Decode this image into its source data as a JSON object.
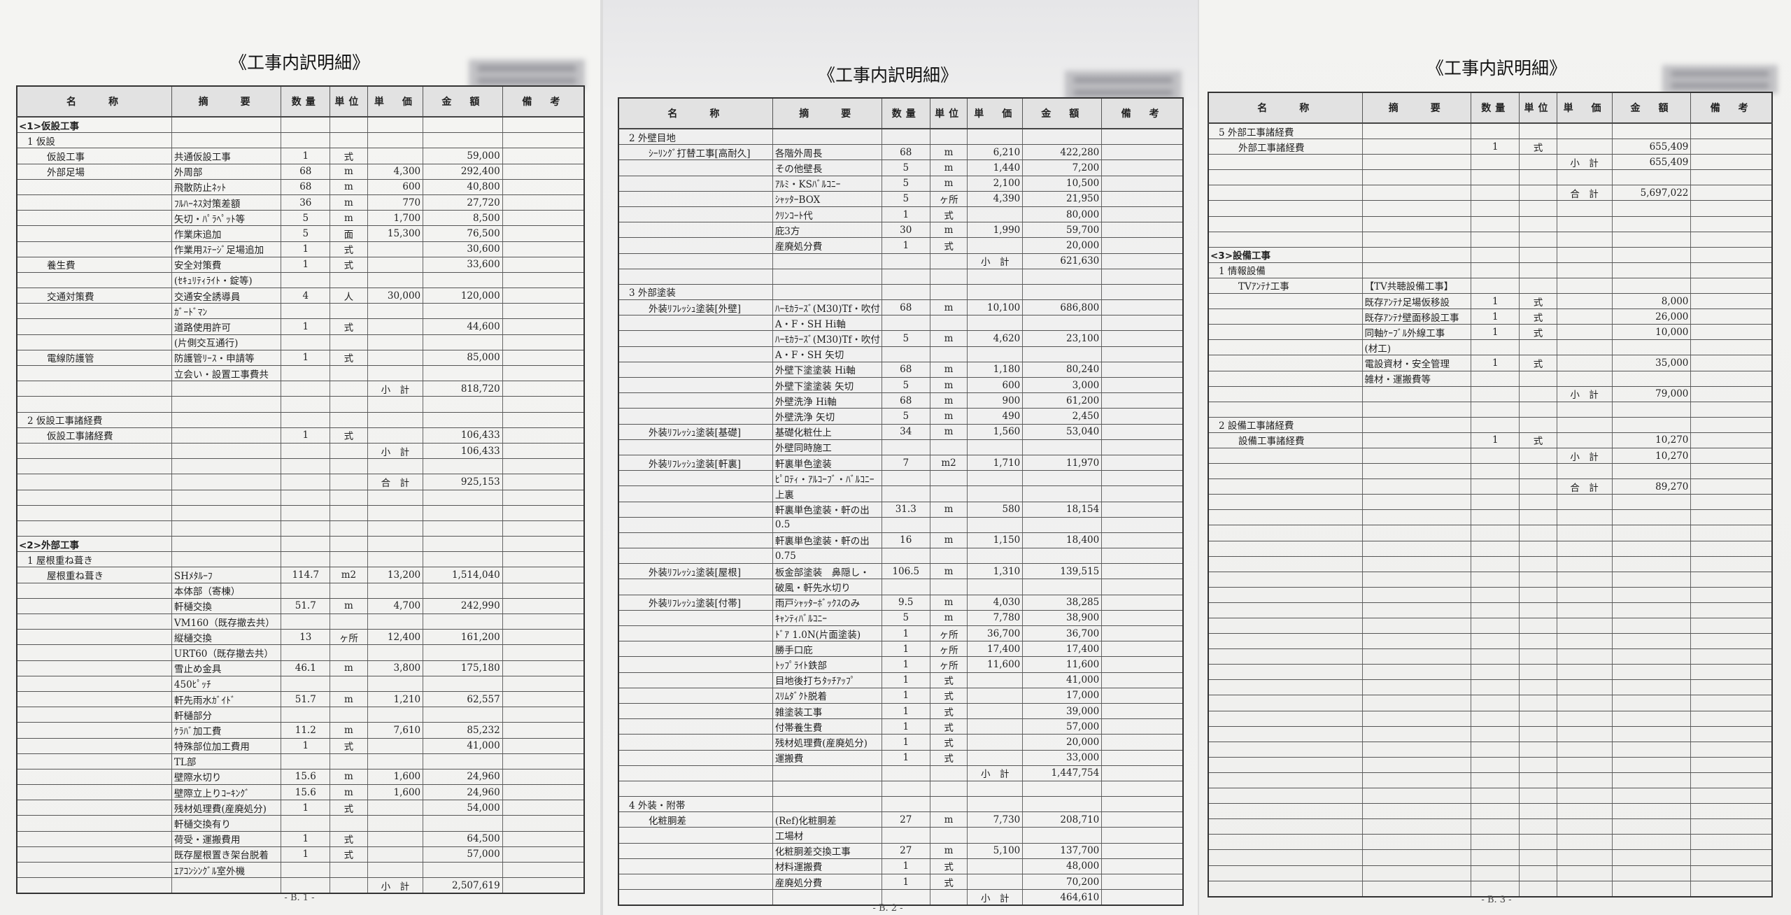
{
  "headers": [
    "名　　称",
    "摘　　要",
    "数量",
    "単位",
    "単　価",
    "金　額",
    "備　考"
  ],
  "pages": [
    {
      "title": "《工事内訳明細》",
      "footer": "- B. 1 -",
      "rows": [
        [
          "section",
          "<1>仮設工事"
        ],
        [
          "group",
          "1 仮設"
        ],
        [
          "item",
          "仮設工事",
          "共通仮設工事",
          "1",
          "式",
          "",
          "59,000"
        ],
        [
          "item",
          "外部足場",
          "外周部",
          "68",
          "m",
          "4,300",
          "292,400"
        ],
        [
          "item",
          "",
          "飛散防止ﾈｯﾄ",
          "68",
          "m",
          "600",
          "40,800"
        ],
        [
          "item",
          "",
          "ﾌﾙﾊｰﾈｽ対策差額",
          "36",
          "m",
          "770",
          "27,720"
        ],
        [
          "item",
          "",
          "矢切・ﾊﾟﾗﾍﾟｯﾄ等",
          "5",
          "m",
          "1,700",
          "8,500"
        ],
        [
          "item",
          "",
          "作業床追加",
          "5",
          "面",
          "15,300",
          "76,500"
        ],
        [
          "item",
          "",
          "作業用ｽﾃｰｼﾞ足場追加",
          "1",
          "式",
          "",
          "30,600"
        ],
        [
          "item",
          "養生費",
          "安全対策費",
          "1",
          "式",
          "",
          "33,600"
        ],
        [
          "item",
          "",
          "(ｾｷｭﾘﾃｨﾗｲﾄ・錠等)"
        ],
        [
          "item",
          "交通対策費",
          "交通安全誘導員",
          "4",
          "人",
          "30,000",
          "120,000"
        ],
        [
          "item",
          "",
          "ｶﾞｰﾄﾞﾏﾝ"
        ],
        [
          "item",
          "",
          "道路使用許可",
          "1",
          "式",
          "",
          "44,600"
        ],
        [
          "item",
          "",
          "(片側交互通行)"
        ],
        [
          "item",
          "電線防護管",
          "防護管ﾘｰｽ・申請等",
          "1",
          "式",
          "",
          "85,000"
        ],
        [
          "item",
          "",
          "立会い・設置工事費共"
        ],
        [
          "item",
          "",
          "",
          "",
          "",
          "小　計",
          "818,720"
        ],
        [],
        [
          "group",
          "2 仮設工事諸経費"
        ],
        [
          "item",
          "仮設工事諸経費",
          "",
          "1",
          "式",
          "",
          "106,433"
        ],
        [
          "item",
          "",
          "",
          "",
          "",
          "小　計",
          "106,433"
        ],
        [],
        [
          "item",
          "",
          "",
          "",
          "",
          "合　計",
          "925,153"
        ],
        [],
        [],
        [],
        [
          "section",
          "<2>外部工事"
        ],
        [
          "group",
          "1 屋根重ね葺き"
        ],
        [
          "item",
          "屋根重ね葺き",
          "SHﾒﾀﾙｰﾌ",
          "114.7",
          "m2",
          "13,200",
          "1,514,040"
        ],
        [
          "item",
          "",
          "本体部（寄棟）"
        ],
        [
          "item",
          "",
          "軒樋交換",
          "51.7",
          "m",
          "4,700",
          "242,990"
        ],
        [
          "item",
          "",
          "VM160（既存撤去共）"
        ],
        [
          "item",
          "",
          "縦樋交換",
          "13",
          "ヶ所",
          "12,400",
          "161,200"
        ],
        [
          "item",
          "",
          "URT60（既存撤去共）"
        ],
        [
          "item",
          "",
          "雪止め金具",
          "46.1",
          "m",
          "3,800",
          "175,180"
        ],
        [
          "item",
          "",
          "450ﾋﾟｯﾁ"
        ],
        [
          "item",
          "",
          "軒先雨水ｶﾞｲﾄﾞ",
          "51.7",
          "m",
          "1,210",
          "62,557"
        ],
        [
          "item",
          "",
          "軒樋部分"
        ],
        [
          "item",
          "",
          "ｹﾗﾊﾞ加工費",
          "11.2",
          "m",
          "7,610",
          "85,232"
        ],
        [
          "item",
          "",
          "特殊部位加工費用",
          "1",
          "式",
          "",
          "41,000"
        ],
        [
          "item",
          "",
          "TL部"
        ],
        [
          "item",
          "",
          "壁際水切り",
          "15.6",
          "m",
          "1,600",
          "24,960"
        ],
        [
          "item",
          "",
          "壁際立上りｺｰｷﾝｸﾞ",
          "15.6",
          "m",
          "1,600",
          "24,960"
        ],
        [
          "item",
          "",
          "残材処理費(産廃処分)",
          "1",
          "式",
          "",
          "54,000"
        ],
        [
          "item",
          "",
          "軒樋交換有り"
        ],
        [
          "item",
          "",
          "荷受・運搬費用",
          "1",
          "式",
          "",
          "64,500"
        ],
        [
          "item",
          "",
          "既存屋根置き架台脱着",
          "1",
          "式",
          "",
          "57,000"
        ],
        [
          "item",
          "",
          "ｴｱｺﾝｼﾝｸﾞﾙ室外機"
        ],
        [
          "item",
          "",
          "",
          "",
          "",
          "小　計",
          "2,507,619"
        ]
      ]
    },
    {
      "title": "《工事内訳明細》",
      "footer": "- B. 2 -",
      "rows": [
        [
          "group",
          "2 外壁目地"
        ],
        [
          "item",
          "ｼｰﾘﾝｸﾞ打替工事[高耐久]",
          "各階外周長",
          "68",
          "m",
          "6,210",
          "422,280"
        ],
        [
          "item",
          "",
          "その他壁長",
          "5",
          "m",
          "1,440",
          "7,200"
        ],
        [
          "item",
          "",
          "ｱﾙﾐ・KSﾊﾞﾙｺﾆｰ",
          "5",
          "m",
          "2,100",
          "10,500"
        ],
        [
          "item",
          "",
          "ｼｬｯﾀｰBOX",
          "5",
          "ヶ所",
          "4,390",
          "21,950"
        ],
        [
          "item",
          "",
          "ｸﾘﾝｺｰﾄ代",
          "1",
          "式",
          "",
          "80,000"
        ],
        [
          "item",
          "",
          "庇3方",
          "30",
          "m",
          "1,990",
          "59,700"
        ],
        [
          "item",
          "",
          "産廃処分費",
          "1",
          "式",
          "",
          "20,000"
        ],
        [
          "item",
          "",
          "",
          "",
          "",
          "小　計",
          "621,630"
        ],
        [],
        [
          "group",
          "3 外部塗装"
        ],
        [
          "item",
          "外装ﾘﾌﾚｯｼｭ塗装[外壁]",
          "ﾊｰﾓｶﾗｰｽﾞ(M30)Tf・吹付",
          "68",
          "m",
          "10,100",
          "686,800"
        ],
        [
          "item",
          "",
          "A・F・SH Hi軸"
        ],
        [
          "item",
          "",
          "ﾊｰﾓｶﾗｰｽﾞ(M30)Tf・吹付",
          "5",
          "m",
          "4,620",
          "23,100"
        ],
        [
          "item",
          "",
          "A・F・SH 矢切"
        ],
        [
          "item",
          "",
          "外壁下塗塗装 Hi軸",
          "68",
          "m",
          "1,180",
          "80,240"
        ],
        [
          "item",
          "",
          "外壁下塗塗装 矢切",
          "5",
          "m",
          "600",
          "3,000"
        ],
        [
          "item",
          "",
          "外壁洗浄 Hi軸",
          "68",
          "m",
          "900",
          "61,200"
        ],
        [
          "item",
          "",
          "外壁洗浄 矢切",
          "5",
          "m",
          "490",
          "2,450"
        ],
        [
          "item",
          "外装ﾘﾌﾚｯｼｭ塗装[基礎]",
          "基礎化粧仕上",
          "34",
          "m",
          "1,560",
          "53,040"
        ],
        [
          "item",
          "",
          "外壁同時施工"
        ],
        [
          "item",
          "外装ﾘﾌﾚｯｼｭ塗装[軒裏]",
          "軒裏単色塗装",
          "7",
          "m2",
          "1,710",
          "11,970"
        ],
        [
          "item",
          "",
          "ﾋﾟﾛﾃｨ・ｱﾙｺｰﾌﾞ・ﾊﾞﾙｺﾆｰ"
        ],
        [
          "item",
          "",
          "上裏"
        ],
        [
          "item",
          "",
          "軒裏単色塗装・軒の出",
          "31.3",
          "m",
          "580",
          "18,154"
        ],
        [
          "item",
          "",
          "0.5"
        ],
        [
          "item",
          "",
          "軒裏単色塗装・軒の出",
          "16",
          "m",
          "1,150",
          "18,400"
        ],
        [
          "item",
          "",
          "0.75"
        ],
        [
          "item",
          "外装ﾘﾌﾚｯｼｭ塗装[屋根]",
          "板金部塗装　鼻隠し・",
          "106.5",
          "m",
          "1,310",
          "139,515"
        ],
        [
          "item",
          "",
          "破風・軒先水切り"
        ],
        [
          "item",
          "外装ﾘﾌﾚｯｼｭ塗装[付帯]",
          "雨戸ｼｬｯﾀｰﾎﾞｯｸｽのみ",
          "9.5",
          "m",
          "4,030",
          "38,285"
        ],
        [
          "item",
          "",
          "ｷｬﾝﾃｨﾊﾞﾙｺﾆｰ",
          "5",
          "m",
          "7,780",
          "38,900"
        ],
        [
          "item",
          "",
          "ﾄﾞｱ 1.0N(片面塗装)",
          "1",
          "ヶ所",
          "36,700",
          "36,700"
        ],
        [
          "item",
          "",
          "勝手口庇",
          "1",
          "ヶ所",
          "17,400",
          "17,400"
        ],
        [
          "item",
          "",
          "ﾄｯﾌﾟﾗｲﾄ鉄部",
          "1",
          "ヶ所",
          "11,600",
          "11,600"
        ],
        [
          "item",
          "",
          "目地後打ちﾀｯﾁｱｯﾌﾟ",
          "1",
          "式",
          "",
          "41,000"
        ],
        [
          "item",
          "",
          "ｽﾘﾑﾀﾞｸﾄ脱着",
          "1",
          "式",
          "",
          "17,000"
        ],
        [
          "item",
          "",
          "雑塗装工事",
          "1",
          "式",
          "",
          "39,000"
        ],
        [
          "item",
          "",
          "付帯養生費",
          "1",
          "式",
          "",
          "57,000"
        ],
        [
          "item",
          "",
          "残材処理費(産廃処分)",
          "1",
          "式",
          "",
          "20,000"
        ],
        [
          "item",
          "",
          "運搬費",
          "1",
          "式",
          "",
          "33,000"
        ],
        [
          "item",
          "",
          "",
          "",
          "",
          "小　計",
          "1,447,754"
        ],
        [],
        [
          "group",
          "4 外装・附帯"
        ],
        [
          "item",
          "化粧胴差",
          "(Ref)化粧胴差",
          "27",
          "m",
          "7,730",
          "208,710"
        ],
        [
          "item",
          "",
          "工場材"
        ],
        [
          "item",
          "",
          "化粧胴差交換工事",
          "27",
          "m",
          "5,100",
          "137,700"
        ],
        [
          "item",
          "",
          "材料運搬費",
          "1",
          "式",
          "",
          "48,000"
        ],
        [
          "item",
          "",
          "産廃処分費",
          "1",
          "式",
          "",
          "70,200"
        ],
        [
          "item",
          "",
          "",
          "",
          "",
          "小　計",
          "464,610"
        ]
      ]
    },
    {
      "title": "《工事内訳明細》",
      "footer": "- B. 3 -",
      "rows": [
        [
          "group",
          "5 外部工事諸経費"
        ],
        [
          "item",
          "外部工事諸経費",
          "",
          "1",
          "式",
          "",
          "655,409"
        ],
        [
          "item",
          "",
          "",
          "",
          "",
          "小　計",
          "655,409"
        ],
        [],
        [
          "item",
          "",
          "",
          "",
          "",
          "合　計",
          "5,697,022"
        ],
        [],
        [],
        [],
        [
          "section",
          "<3>設備工事"
        ],
        [
          "group",
          "1 情報設備"
        ],
        [
          "item",
          "TVｱﾝﾃﾅ工事",
          "【TV共聴設備工事】"
        ],
        [
          "item",
          "",
          "既存ｱﾝﾃﾅ足場仮移設",
          "1",
          "式",
          "",
          "8,000"
        ],
        [
          "item",
          "",
          "既存ｱﾝﾃﾅ壁面移設工事",
          "1",
          "式",
          "",
          "26,000"
        ],
        [
          "item",
          "",
          "同軸ｹｰﾌﾞﾙ外線工事",
          "1",
          "式",
          "",
          "10,000"
        ],
        [
          "item",
          "",
          "(材工)"
        ],
        [
          "item",
          "",
          "電設資材・安全管理",
          "1",
          "式",
          "",
          "35,000"
        ],
        [
          "item",
          "",
          "雑材・運搬費等"
        ],
        [
          "item",
          "",
          "",
          "",
          "",
          "小　計",
          "79,000"
        ],
        [],
        [
          "group",
          "2 設備工事諸経費"
        ],
        [
          "item",
          "設備工事諸経費",
          "",
          "1",
          "式",
          "",
          "10,270"
        ],
        [
          "item",
          "",
          "",
          "",
          "",
          "小　計",
          "10,270"
        ],
        [],
        [
          "item",
          "",
          "",
          "",
          "",
          "合　計",
          "89,270"
        ],
        [],
        [],
        [],
        [],
        [],
        [],
        [],
        [],
        [],
        [],
        [],
        [],
        [],
        [],
        [],
        [],
        [],
        [],
        [],
        [],
        [],
        [],
        [],
        [],
        [],
        []
      ]
    }
  ]
}
